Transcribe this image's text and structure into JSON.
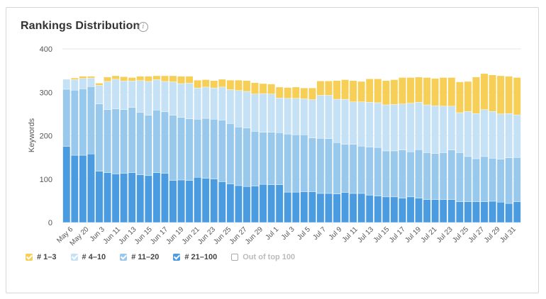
{
  "title": "Rankings Distribution",
  "info_icon": "info-icon",
  "legend": [
    {
      "label": "# 1–3",
      "color": "#f7cf57",
      "checked": true
    },
    {
      "label": "# 4–10",
      "color": "#c5e1f5",
      "checked": true
    },
    {
      "label": "# 11–20",
      "color": "#98c9ec",
      "checked": true
    },
    {
      "label": "# 21–100",
      "color": "#4a9be0",
      "checked": true
    },
    {
      "label": "Out of top 100",
      "color": "#ffffff",
      "checked": false
    }
  ],
  "chart_data": {
    "type": "bar",
    "stacked": true,
    "ylabel": "Keywords",
    "ylim": [
      0,
      400
    ],
    "yticks": [
      0,
      100,
      200,
      300,
      400
    ],
    "grid": true,
    "legend_position": "bottom-left",
    "xtick_labels": [
      "May 6",
      "May 20",
      "Jun 3",
      "Jun 11",
      "Jun 13",
      "Jun 15",
      "Jun 17",
      "Jun 19",
      "Jun 21",
      "Jun 23",
      "Jun 25",
      "Jun 27",
      "Jun 29",
      "Jul 1",
      "Jul 3",
      "Jul 5",
      "Jul 7",
      "Jul 9",
      "Jul 11",
      "Jul 13",
      "Jul 15",
      "Jul 17",
      "Jul 19",
      "Jul 21",
      "Jul 23",
      "Jul 25",
      "Jul 27",
      "Jul 29",
      "Jul 31"
    ],
    "series": [
      {
        "name": "# 21–100",
        "color": "#4a9be0",
        "values": [
          175,
          155,
          155,
          158,
          118,
          115,
          112,
          113,
          115,
          110,
          108,
          115,
          113,
          97,
          98,
          97,
          104,
          102,
          100,
          94,
          89,
          85,
          83,
          84,
          88,
          87,
          87,
          70,
          70,
          71,
          71,
          67,
          67,
          66,
          69,
          67,
          67,
          63,
          61,
          59,
          59,
          56,
          59,
          56,
          53,
          53,
          53,
          53,
          48,
          48,
          48,
          48,
          49,
          47,
          44,
          48
        ]
      },
      {
        "name": "# 11–20",
        "color": "#98c9ec",
        "values": [
          132,
          150,
          153,
          155,
          155,
          145,
          150,
          147,
          150,
          144,
          139,
          144,
          142,
          150,
          144,
          142,
          134,
          138,
          138,
          142,
          139,
          135,
          135,
          126,
          120,
          121,
          120,
          134,
          132,
          131,
          124,
          127,
          126,
          118,
          111,
          113,
          109,
          111,
          112,
          106,
          106,
          111,
          104,
          112,
          108,
          106,
          108,
          114,
          113,
          104,
          99,
          104,
          99,
          99,
          105,
          102
        ]
      },
      {
        "name": "# 4–10",
        "color": "#c5e1f5",
        "values": [
          23,
          24,
          24,
          20,
          43,
          65,
          68,
          66,
          61,
          73,
          78,
          70,
          70,
          77,
          78,
          82,
          72,
          72,
          72,
          76,
          78,
          84,
          84,
          86,
          89,
          88,
          80,
          82,
          84,
          83,
          88,
          99,
          100,
          100,
          104,
          98,
          102,
          103,
          103,
          106,
          107,
          106,
          112,
          109,
          110,
          110,
          107,
          101,
          92,
          104,
          104,
          108,
          108,
          104,
          102,
          98
        ]
      },
      {
        "name": "# 1–3",
        "color": "#f7cf57",
        "values": [
          0,
          4,
          5,
          4,
          5,
          10,
          8,
          10,
          8,
          10,
          12,
          9,
          13,
          14,
          17,
          16,
          18,
          17,
          17,
          18,
          22,
          24,
          25,
          26,
          23,
          23,
          25,
          25,
          26,
          25,
          27,
          33,
          33,
          43,
          45,
          49,
          47,
          54,
          55,
          56,
          57,
          61,
          59,
          58,
          63,
          63,
          66,
          66,
          71,
          69,
          84,
          83,
          84,
          88,
          86,
          86
        ]
      }
    ]
  }
}
